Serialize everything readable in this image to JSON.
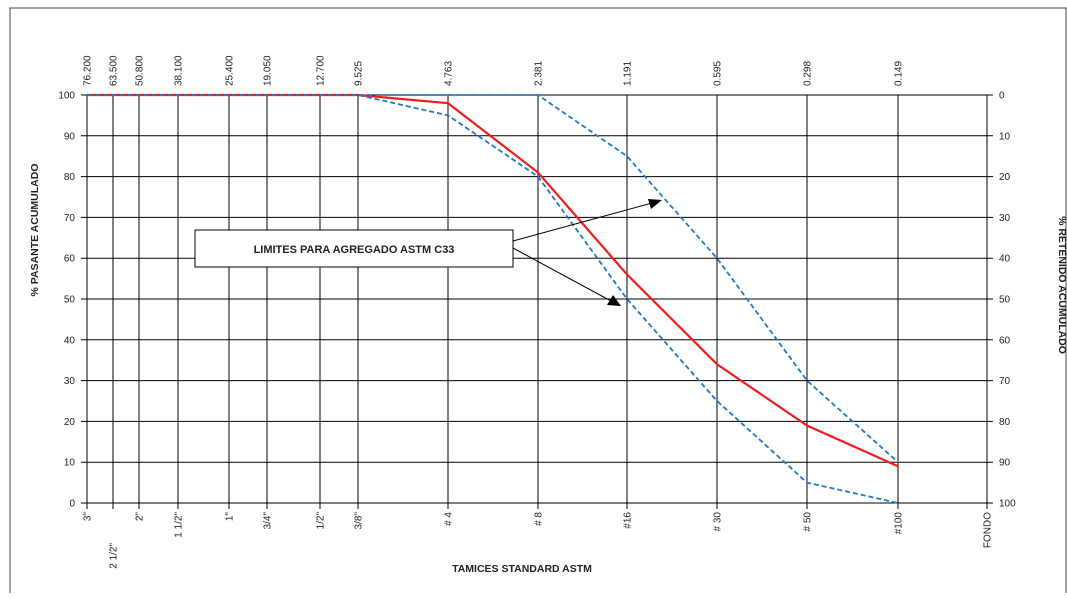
{
  "chart_data": {
    "type": "line",
    "xlabel": "TAMICES STANDARD ASTM",
    "ylabel": "% PASANTE ACUMULADO",
    "ylabel_right": "% RETENIDO ACUMULADO",
    "ylim": [
      0,
      100
    ],
    "y_ticks": [
      0,
      10,
      20,
      30,
      40,
      50,
      60,
      70,
      80,
      90,
      100
    ],
    "y_ticks_right": [
      100,
      90,
      80,
      70,
      60,
      50,
      40,
      30,
      20,
      10,
      0
    ],
    "grid": true,
    "sieves": [
      "3\"",
      "2 1/2\"",
      "2\"",
      "1 1/2\"",
      "1\"",
      "3/4\"",
      "1/2\"",
      "3/8\"",
      "# 4",
      "# 8",
      "#16",
      "# 30",
      "# 50",
      "#100",
      "FONDO"
    ],
    "openings_mm": [
      "76.200",
      "63.500",
      "50.800",
      "38.100",
      "25.400",
      "19.050",
      "12.700",
      "9.525",
      "4.763",
      "2.381",
      "1.191",
      "0.595",
      "0.298",
      "0.149"
    ],
    "series": [
      {
        "style": "solid",
        "color": "#ee1c1c",
        "values": [
          100,
          100,
          100,
          100,
          100,
          100,
          100,
          100,
          98,
          81,
          56,
          34,
          19,
          9
        ]
      },
      {
        "style": "dashed",
        "color": "#1f78c8",
        "values": [
          100,
          100,
          100,
          100,
          100,
          100,
          100,
          100,
          100,
          100,
          85,
          60,
          30,
          10
        ]
      },
      {
        "style": "dashed",
        "color": "#1f78c8",
        "values": [
          100,
          100,
          100,
          100,
          100,
          100,
          100,
          100,
          95,
          80,
          50,
          25,
          5,
          0
        ]
      }
    ],
    "annotation": {
      "text": "LIMITES PARA AGREGADO ASTM C33"
    }
  }
}
